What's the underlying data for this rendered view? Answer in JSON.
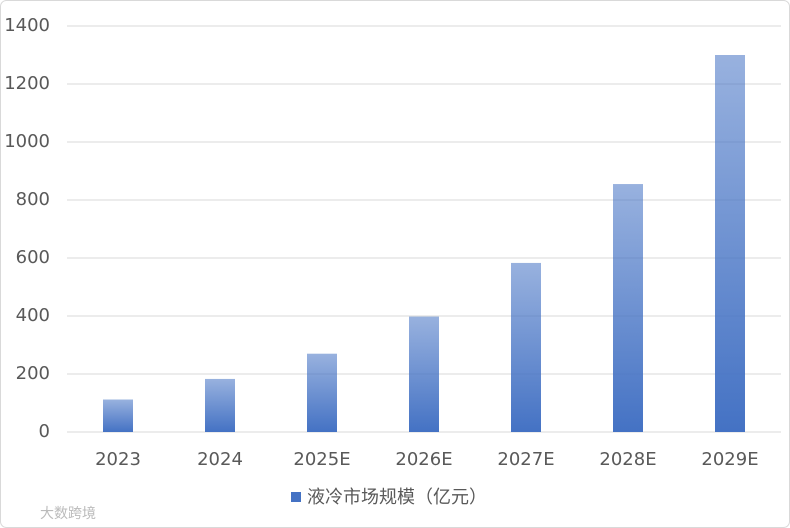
{
  "chart_data": {
    "type": "bar",
    "categories": [
      "2023",
      "2024",
      "2025E",
      "2026E",
      "2027E",
      "2028E",
      "2029E"
    ],
    "series": [
      {
        "name": "液冷市场规模（亿元）",
        "color": "#4472c4",
        "values": [
          112,
          183,
          270,
          398,
          583,
          855,
          1300
        ]
      }
    ],
    "ylim": [
      0,
      1400
    ],
    "yticks": [
      0,
      200,
      400,
      600,
      800,
      1000,
      1200,
      1400
    ],
    "grid": true,
    "legend": "bottom"
  },
  "watermark": "大数跨境"
}
